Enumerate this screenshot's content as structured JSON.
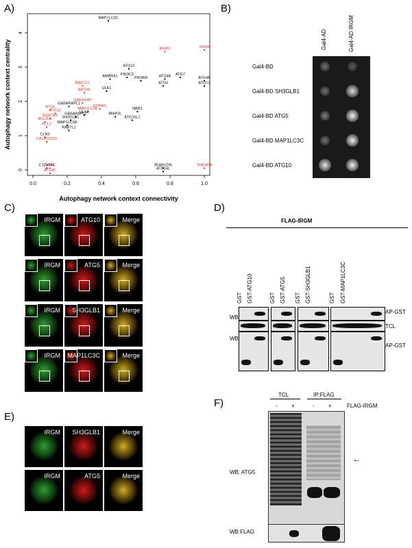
{
  "panels": {
    "A": "A)",
    "B": "B)",
    "C": "C)",
    "D": "D)",
    "E": "E)",
    "F": "F)"
  },
  "chart_data": {
    "type": "scatter",
    "xlabel": "Autophagy network context connectivity",
    "ylabel": "Autophagy network context centrality",
    "xlim": [
      0,
      1.0
    ],
    "ylim": [
      0,
      4.4
    ],
    "xticks": [
      "0.0",
      "0.2",
      "0.4",
      "0.6",
      "0.8",
      "1.0"
    ],
    "yticks": [
      "0",
      "1",
      "2",
      "3",
      "4"
    ],
    "points": [
      {
        "label": "MAP1LC3C",
        "x": 0.44,
        "y": 4.35,
        "color": "#000000"
      },
      {
        "label": "BNIP3",
        "x": 0.77,
        "y": 3.45,
        "color": "#e0302a"
      },
      {
        "label": "IRGM",
        "x": 1.0,
        "y": 3.5,
        "color": "#e0302a"
      },
      {
        "label": "ATG10",
        "x": 0.56,
        "y": 2.95,
        "color": "#000000"
      },
      {
        "label": "AMBRA1",
        "x": 0.45,
        "y": 2.65,
        "color": "#000000"
      },
      {
        "label": "PIK3C3",
        "x": 0.55,
        "y": 2.7,
        "color": "#000000"
      },
      {
        "label": "PIK3R4",
        "x": 0.63,
        "y": 2.6,
        "color": "#000000"
      },
      {
        "label": "ATG4B",
        "x": 0.77,
        "y": 2.65,
        "color": "#000000"
      },
      {
        "label": "ATG7",
        "x": 0.86,
        "y": 2.7,
        "color": "#000000"
      },
      {
        "label": "ATG4A",
        "x": 1.0,
        "y": 2.6,
        "color": "#000000"
      },
      {
        "label": "ATG13",
        "x": 1.0,
        "y": 2.45,
        "color": "#000000"
      },
      {
        "label": "ATG3",
        "x": 0.76,
        "y": 2.45,
        "color": "#000000"
      },
      {
        "label": "RB1CC1",
        "x": 0.29,
        "y": 2.45,
        "color": "#e0302a"
      },
      {
        "label": "ULK1",
        "x": 0.43,
        "y": 2.3,
        "color": "#000000"
      },
      {
        "label": "BECN1",
        "x": 0.3,
        "y": 2.25,
        "color": "#e0302a"
      },
      {
        "label": "GABARAP",
        "x": 0.29,
        "y": 1.95,
        "color": "#e0302a"
      },
      {
        "label": "GABARAPL1",
        "x": 0.21,
        "y": 1.85,
        "color": "#000000"
      },
      {
        "label": "UVRAG",
        "x": 0.39,
        "y": 1.78,
        "color": "#e0302a"
      },
      {
        "label": "ATG5",
        "x": 0.1,
        "y": 1.75,
        "color": "#e0302a"
      },
      {
        "label": "MAP1LC3B",
        "x": 0.32,
        "y": 1.7,
        "color": "#e0302a"
      },
      {
        "label": "ATG12",
        "x": 0.13,
        "y": 1.65,
        "color": "#e0302a"
      },
      {
        "label": "NBR1",
        "x": 0.61,
        "y": 1.7,
        "color": "#000000"
      },
      {
        "label": "ULK2",
        "x": 0.3,
        "y": 1.6,
        "color": "#000000"
      },
      {
        "label": "GABARAPL2",
        "x": 0.25,
        "y": 1.55,
        "color": "#000000"
      },
      {
        "label": "SQSTM1",
        "x": 0.1,
        "y": 1.5,
        "color": "#e0302a"
      },
      {
        "label": "BNIP3L",
        "x": 0.48,
        "y": 1.55,
        "color": "#000000"
      },
      {
        "label": "BCL2L1",
        "x": 0.07,
        "y": 1.4,
        "color": "#e0302a"
      },
      {
        "label": "SH3GLB1",
        "x": 0.22,
        "y": 1.45,
        "color": "#000000"
      },
      {
        "label": "ATG16L1",
        "x": 0.58,
        "y": 1.45,
        "color": "#000000"
      },
      {
        "label": "MAP1LC3A",
        "x": 0.2,
        "y": 1.3,
        "color": "#000000"
      },
      {
        "label": "BCL2",
        "x": 0.08,
        "y": 1.25,
        "color": "#e0302a"
      },
      {
        "label": "RAB7L1",
        "x": 0.21,
        "y": 1.15,
        "color": "#000000"
      },
      {
        "label": "CLN3",
        "x": 0.07,
        "y": 0.95,
        "color": "#000000"
      },
      {
        "label": "CALCOCO2",
        "x": 0.08,
        "y": 0.82,
        "color": "#e0302a"
      },
      {
        "label": "C12orf44",
        "x": 0.08,
        "y": 0.05,
        "color": "#000000"
      },
      {
        "label": "GOPC",
        "x": 0.1,
        "y": 0.05,
        "color": "#e0302a"
      },
      {
        "label": "ATG4C",
        "x": 0.1,
        "y": -0.1,
        "color": "#e0302a"
      },
      {
        "label": "RUBICON",
        "x": 0.76,
        "y": 0.05,
        "color": "#000000"
      },
      {
        "label": "ATG14L",
        "x": 0.76,
        "y": -0.05,
        "color": "#000000"
      },
      {
        "label": "TMEM74",
        "x": 1.0,
        "y": 0.05,
        "color": "#e0302a"
      }
    ]
  },
  "panelB": {
    "cols": [
      "Gal4-AD",
      "Gal4-AD IRGM"
    ],
    "rows": [
      "Gal4-BD",
      "Gal4-BD SH3GLB1",
      "Gal4-BD ATG5",
      "Gal4-BD MAP1LC3C",
      "Gal4-BD ATG10"
    ]
  },
  "panelC": {
    "rows": [
      [
        "IRGM",
        "ATG10",
        "Merge"
      ],
      [
        "IRGM",
        "ATG5",
        "Merge"
      ],
      [
        "IRGM",
        "SH3GLB1",
        "Merge"
      ],
      [
        "IRGM",
        "MAP1LC3C",
        "Merge"
      ]
    ]
  },
  "panelD": {
    "header": "FLAG-IRGM",
    "lanes": [
      "GST",
      "GST-ATG10",
      "GST",
      "GST-ATG5",
      "GST",
      "GST-SH3GLB1",
      "GST",
      "GST-MAP1LC3C"
    ],
    "left": [
      "WB:FLAG",
      "WB: GST"
    ],
    "right": [
      "AP-GST",
      "TCL",
      "AP-GST"
    ]
  },
  "panelE": {
    "rows": [
      [
        "IRGM",
        "SH3GLB1",
        "Merge"
      ],
      [
        "IRGM",
        "ATG5",
        "Merge"
      ]
    ]
  },
  "panelF": {
    "groups": [
      "TCL",
      "IP:FLAG"
    ],
    "signs": [
      "-",
      "+",
      "-",
      "+"
    ],
    "condition": "FLAG-IRGM",
    "blots": [
      "WB: ATG5",
      "WB:FLAG"
    ],
    "arrow": "←"
  },
  "colors": {
    "red": "#e0302a",
    "black": "#000000"
  }
}
